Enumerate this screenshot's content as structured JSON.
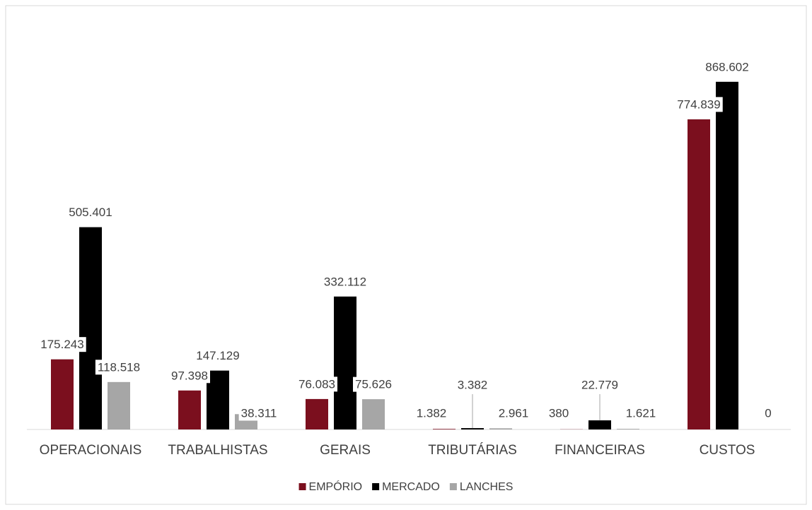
{
  "chart_data": {
    "type": "bar",
    "categories": [
      "OPERACIONAIS",
      "TRABALHISTAS",
      "GERAIS",
      "TRIBUTÁRIAS",
      "FINANCEIRAS",
      "CUSTOS"
    ],
    "series": [
      {
        "name": "EMPÓRIO",
        "color": "#7b0f1e",
        "values": [
          175243,
          97398,
          76083,
          1382,
          380,
          774839
        ],
        "value_labels": [
          "175.243",
          "97.398",
          "76.083",
          "1.382",
          "380",
          "774.839"
        ]
      },
      {
        "name": "MERCADO",
        "color": "#000000",
        "values": [
          505401,
          147129,
          332112,
          3382,
          22779,
          868602
        ],
        "value_labels": [
          "505.401",
          "147.129",
          "332.112",
          "3.382",
          "22.779",
          "868.602"
        ]
      },
      {
        "name": "LANCHES",
        "color": "#a6a6a6",
        "values": [
          118518,
          38311,
          75626,
          2961,
          1621,
          0
        ],
        "value_labels": [
          "118.518",
          "38.311",
          "75.626",
          "2.961",
          "1.621",
          "0"
        ]
      }
    ],
    "ylim": [
      0,
      900000
    ],
    "legend": "bottom"
  }
}
